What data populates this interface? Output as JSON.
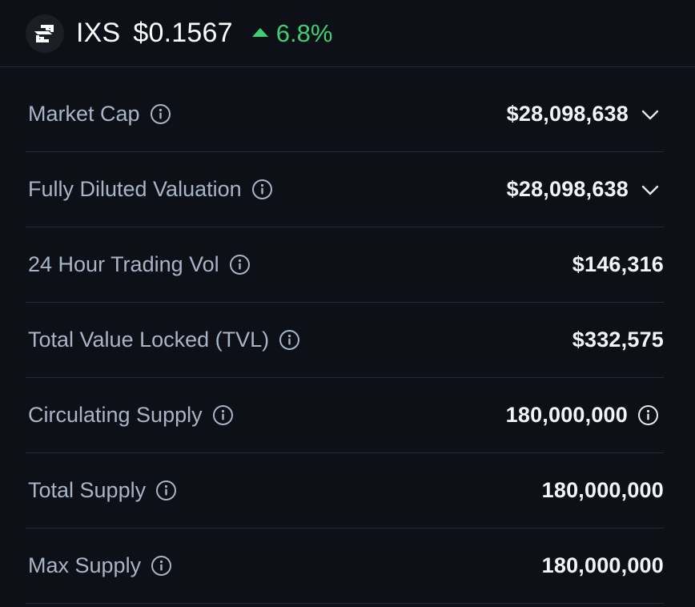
{
  "coin": {
    "logo_icon": "ixs-arrows-logo-icon",
    "ticker": "IXS",
    "price": "$0.1567",
    "change": "6.8%",
    "change_direction": "up",
    "colors": {
      "positive": "#3fcf72",
      "background": "#0d1117",
      "label": "#a9b4c6"
    }
  },
  "stats": [
    {
      "label": "Market Cap",
      "value": "$28,098,638",
      "info_icon": "info-circle-icon",
      "trailing_icon": "chevron-down-icon"
    },
    {
      "label": "Fully Diluted Valuation",
      "value": "$28,098,638",
      "info_icon": "info-circle-icon",
      "trailing_icon": "chevron-down-icon"
    },
    {
      "label": "24 Hour Trading Vol",
      "value": "$146,316",
      "info_icon": "info-circle-icon"
    },
    {
      "label": "Total Value Locked (TVL)",
      "value": "$332,575",
      "info_icon": "info-circle-icon"
    },
    {
      "label": "Circulating Supply",
      "value": "180,000,000",
      "info_icon": "info-circle-icon",
      "trailing_icon": "info-circle-icon"
    },
    {
      "label": "Total Supply",
      "value": "180,000,000",
      "info_icon": "info-circle-icon"
    },
    {
      "label": "Max Supply",
      "value": "180,000,000",
      "info_icon": "info-circle-icon"
    }
  ]
}
